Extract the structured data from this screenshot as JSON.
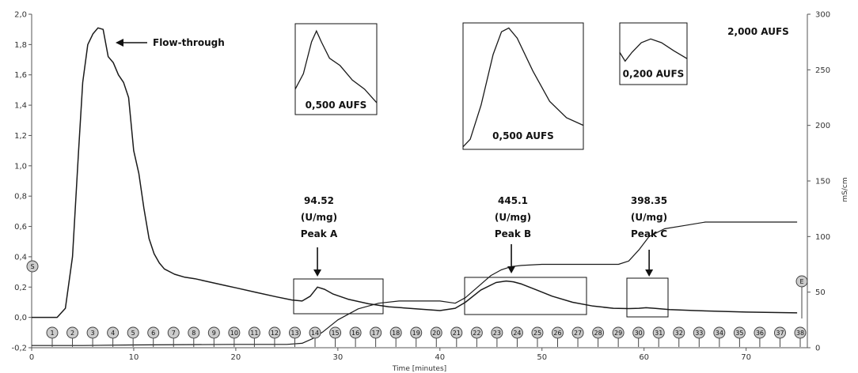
{
  "chart_data": {
    "type": "line",
    "xlabel": "Time [minutes]",
    "ylabel_right": "mS/cm",
    "xlim": [
      0,
      76
    ],
    "ylim_left": [
      -0.2,
      2.0
    ],
    "ylim_right": [
      0,
      300
    ],
    "x_ticks": [
      "0",
      "10",
      "20",
      "30",
      "40",
      "50",
      "60",
      "70"
    ],
    "y_left_ticks": [
      "-0,2",
      "0,0",
      "0,2",
      "0,4",
      "0,6",
      "0,8",
      "1,0",
      "1,2",
      "1,4",
      "1,6",
      "1,8",
      "2,0"
    ],
    "y_right_ticks": [
      "0",
      "50",
      "100",
      "150",
      "200",
      "250",
      "300"
    ],
    "series": [
      {
        "role": "absorbance",
        "axis": "left",
        "x": [
          0,
          2.5,
          3.3,
          4.0,
          4.6,
          5.0,
          5.5,
          6.0,
          6.5,
          7.0,
          7.5,
          8.0,
          8.5,
          9.0,
          9.5,
          10.0,
          10.5,
          11.0,
          11.5,
          12.0,
          12.5,
          13.0,
          14.0,
          15.0,
          16.0,
          17.0,
          18.0,
          19.0,
          20.0,
          22.0,
          24.0,
          25.5,
          26.5,
          27.3,
          28.0,
          28.7,
          29.5,
          31.0,
          33.0,
          35.0,
          38.0,
          40.0,
          41.5,
          42.5,
          44.0,
          45.5,
          46.5,
          47.2,
          48.0,
          49.5,
          51.0,
          53.0,
          55.0,
          57.0,
          58.5,
          59.5,
          60.2,
          61.0,
          62.5,
          65.0,
          70.0,
          75.0
        ],
        "y": [
          0.0,
          0.0,
          0.06,
          0.4,
          1.1,
          1.55,
          1.8,
          1.87,
          1.91,
          1.9,
          1.72,
          1.68,
          1.6,
          1.55,
          1.45,
          1.1,
          0.95,
          0.72,
          0.52,
          0.42,
          0.36,
          0.32,
          0.285,
          0.265,
          0.255,
          0.24,
          0.225,
          0.21,
          0.195,
          0.165,
          0.135,
          0.115,
          0.108,
          0.14,
          0.2,
          0.185,
          0.155,
          0.12,
          0.09,
          0.07,
          0.055,
          0.045,
          0.06,
          0.1,
          0.18,
          0.23,
          0.24,
          0.235,
          0.22,
          0.18,
          0.14,
          0.1,
          0.075,
          0.06,
          0.058,
          0.06,
          0.064,
          0.06,
          0.052,
          0.045,
          0.035,
          0.03
        ]
      },
      {
        "role": "conductivity",
        "axis": "right",
        "x": [
          0,
          5,
          10,
          20,
          25,
          26.5,
          27.5,
          28.5,
          30,
          32,
          34,
          36,
          38,
          40,
          41.5,
          42.5,
          44,
          45,
          46,
          47,
          48,
          50,
          54,
          56,
          57.5,
          58.5,
          59.5,
          60.5,
          62,
          64,
          66,
          70,
          75
        ],
        "y": [
          2,
          2,
          2.5,
          3,
          3,
          4,
          8,
          14,
          25,
          35,
          40,
          42,
          42,
          42,
          40,
          45,
          57,
          65,
          70,
          73,
          74,
          75,
          75,
          75,
          75,
          78,
          88,
          100,
          107,
          110,
          113,
          113,
          113
        ]
      }
    ],
    "fractions": [
      "1",
      "2",
      "3",
      "4",
      "5",
      "6",
      "7",
      "8",
      "9",
      "10",
      "11",
      "12",
      "13",
      "14",
      "15",
      "16",
      "17",
      "18",
      "19",
      "20",
      "21",
      "22",
      "23",
      "24",
      "25",
      "26",
      "27",
      "28",
      "29",
      "30",
      "31",
      "32",
      "33",
      "34",
      "35",
      "36",
      "37",
      "38"
    ],
    "annotations": {
      "flow_through": "Flow-through",
      "aufs_main": "2,000 AUFS",
      "peak_a": {
        "activity": "94.52",
        "unit": "(U/mg)",
        "label": "Peak A",
        "x": 28,
        "inset_scale": "0,500 AUFS"
      },
      "peak_b": {
        "activity": "445.1",
        "unit": "(U/mg)",
        "label": "Peak B",
        "x": 47,
        "inset_scale": "0,500 AUFS"
      },
      "peak_c": {
        "activity": "398.35",
        "unit": "(U/mg)",
        "label": "Peak C",
        "x": 60.5,
        "inset_scale": "0,200 AUFS"
      },
      "marker_s": "S",
      "marker_e": "E"
    },
    "colors": {
      "trace": "#1a1a1a",
      "axis": "#555555",
      "marker": "#cccccc"
    }
  }
}
